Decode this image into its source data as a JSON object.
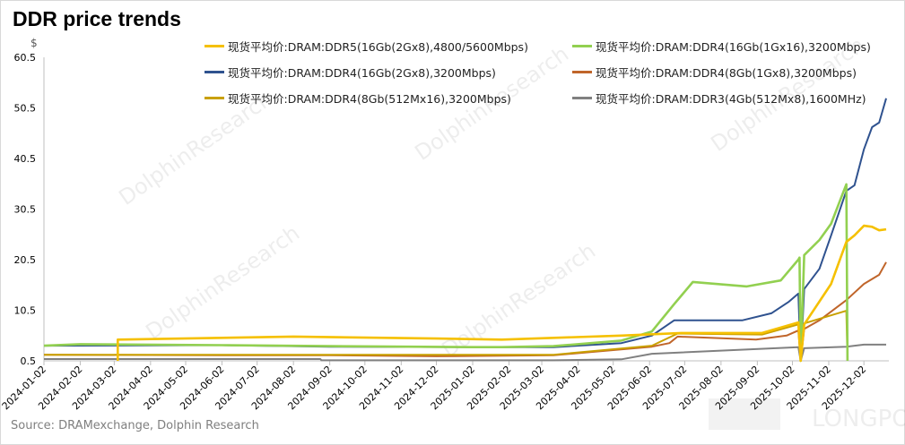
{
  "title": "DDR price trends",
  "source": "Source:  DRAMexchange,  Dolphin  Research",
  "watermarks": [
    "DolphinResearch",
    "LONGPORT"
  ],
  "chart_data": {
    "type": "line",
    "title": "DDR price trends",
    "ylabel": "$",
    "xlabel": "",
    "ylim": [
      0.5,
      60.5
    ],
    "yticks": [
      0.5,
      10.5,
      20.5,
      30.5,
      40.5,
      50.5,
      60.5
    ],
    "xlim": [
      "2024-01-02",
      "2025-12-21"
    ],
    "xticks": [
      "2024-01-02",
      "2024-02-02",
      "2024-03-02",
      "2024-04-02",
      "2024-05-02",
      "2024-06-02",
      "2024-07-02",
      "2024-08-02",
      "2024-09-02",
      "2024-10-02",
      "2024-11-02",
      "2024-12-02",
      "2025-01-02",
      "2025-02-02",
      "2025-03-02",
      "2025-04-02",
      "2025-05-02",
      "2025-06-02",
      "2025-07-02",
      "2025-08-02",
      "2025-09-02",
      "2025-10-02",
      "2025-11-02",
      "2025-12-02"
    ],
    "grid": false,
    "legend_position": "top",
    "series": [
      {
        "name": "现货平均价:DRAM:DDR5(16Gb(2Gx8),4800/5600Mbps)",
        "color": "#F5C000",
        "points": [
          [
            "2024-03-05",
            0.5
          ],
          [
            "2024-03-05",
            4.7
          ],
          [
            "2024-08-02",
            5.3
          ],
          [
            "2024-12-02",
            4.9
          ],
          [
            "2025-01-27",
            4.7
          ],
          [
            "2025-05-09",
            5.5
          ],
          [
            "2025-06-29",
            6.0
          ],
          [
            "2025-09-06",
            6.0
          ],
          [
            "2025-10-07",
            8.1
          ],
          [
            "2025-10-09",
            0.5
          ],
          [
            "2025-10-12",
            7.7
          ],
          [
            "2025-11-04",
            15.7
          ],
          [
            "2025-11-17",
            24.0
          ],
          [
            "2025-11-24",
            25.3
          ],
          [
            "2025-12-02",
            27.2
          ],
          [
            "2025-12-09",
            27.0
          ],
          [
            "2025-12-15",
            26.3
          ],
          [
            "2025-12-21",
            26.5
          ]
        ]
      },
      {
        "name": "现货平均价:DRAM:DDR4(16Gb(1Gx16),3200Mbps)",
        "color": "#92D050",
        "points": [
          [
            "2024-01-02",
            3.5
          ],
          [
            "2024-02-02",
            3.8
          ],
          [
            "2024-06-02",
            3.6
          ],
          [
            "2024-09-02",
            3.4
          ],
          [
            "2025-01-02",
            3.2
          ],
          [
            "2025-01-27",
            3.2
          ],
          [
            "2025-03-12",
            3.4
          ],
          [
            "2025-05-09",
            4.5
          ],
          [
            "2025-06-04",
            6.3
          ],
          [
            "2025-06-23",
            11.7
          ],
          [
            "2025-07-09",
            16.1
          ],
          [
            "2025-08-24",
            15.2
          ],
          [
            "2025-09-22",
            16.4
          ],
          [
            "2025-10-07",
            20.5
          ],
          [
            "2025-10-08",
            20.9
          ],
          [
            "2025-10-09",
            0.5
          ],
          [
            "2025-10-12",
            21.4
          ],
          [
            "2025-10-25",
            24.4
          ],
          [
            "2025-11-04",
            27.6
          ],
          [
            "2025-11-17",
            35.4
          ],
          [
            "2025-11-18",
            0.5
          ]
        ]
      },
      {
        "name": "现货平均价:DRAM:DDR4(16Gb(2Gx8),3200Mbps)",
        "color": "#2F528F",
        "points": [
          [
            "2024-01-02",
            3.5
          ],
          [
            "2024-06-02",
            3.6
          ],
          [
            "2024-09-02",
            3.3
          ],
          [
            "2025-01-27",
            3.2
          ],
          [
            "2025-03-12",
            3.2
          ],
          [
            "2025-05-09",
            4.0
          ],
          [
            "2025-06-04",
            5.5
          ],
          [
            "2025-06-23",
            8.5
          ],
          [
            "2025-08-20",
            8.5
          ],
          [
            "2025-09-14",
            9.9
          ],
          [
            "2025-09-29",
            12.2
          ],
          [
            "2025-10-07",
            13.8
          ],
          [
            "2025-10-09",
            0.5
          ],
          [
            "2025-10-12",
            14.7
          ],
          [
            "2025-10-25",
            18.7
          ],
          [
            "2025-11-04",
            25.3
          ],
          [
            "2025-11-17",
            34.1
          ],
          [
            "2025-11-24",
            35.2
          ],
          [
            "2025-12-02",
            42.3
          ],
          [
            "2025-12-09",
            46.7
          ],
          [
            "2025-12-15",
            47.6
          ],
          [
            "2025-12-21",
            52.4
          ]
        ]
      },
      {
        "name": "现货平均价:DRAM:DDR4(8Gb(1Gx8),3200Mbps)",
        "color": "#C0652A",
        "points": [
          [
            "2024-01-02",
            1.7
          ],
          [
            "2024-06-02",
            1.6
          ],
          [
            "2024-09-02",
            1.6
          ],
          [
            "2024-12-02",
            1.4
          ],
          [
            "2025-03-12",
            1.6
          ],
          [
            "2025-06-04",
            3.3
          ],
          [
            "2025-06-19",
            4.0
          ],
          [
            "2025-06-26",
            5.3
          ],
          [
            "2025-09-01",
            4.7
          ],
          [
            "2025-09-27",
            5.5
          ],
          [
            "2025-10-07",
            6.5
          ],
          [
            "2025-10-09",
            0.5
          ],
          [
            "2025-10-12",
            6.8
          ],
          [
            "2025-10-25",
            8.5
          ],
          [
            "2025-11-17",
            12.5
          ],
          [
            "2025-12-02",
            15.7
          ],
          [
            "2025-12-15",
            17.5
          ],
          [
            "2025-12-21",
            20.0
          ]
        ]
      },
      {
        "name": "现货平均价:DRAM:DDR4(8Gb(512Mx16),3200Mbps)",
        "color": "#C9A000",
        "points": [
          [
            "2024-01-02",
            1.7
          ],
          [
            "2024-09-02",
            1.7
          ],
          [
            "2025-03-12",
            1.7
          ],
          [
            "2025-06-04",
            3.5
          ],
          [
            "2025-06-26",
            5.9
          ],
          [
            "2025-09-06",
            5.7
          ],
          [
            "2025-10-07",
            7.7
          ],
          [
            "2025-10-09",
            0.5
          ],
          [
            "2025-10-12",
            7.9
          ],
          [
            "2025-10-25",
            8.8
          ],
          [
            "2025-11-17",
            10.4
          ],
          [
            "2025-11-18",
            0.5
          ]
        ]
      },
      {
        "name": "现货平均价:DRAM:DDR3(4Gb(512Mx8),1600MHz)",
        "color": "#808080",
        "points": [
          [
            "2024-01-02",
            0.85
          ],
          [
            "2024-08-25",
            0.85
          ],
          [
            "2024-08-26",
            0.6
          ],
          [
            "2025-03-12",
            0.6
          ],
          [
            "2025-05-09",
            0.8
          ],
          [
            "2025-06-04",
            1.9
          ],
          [
            "2025-10-07",
            3.2
          ],
          [
            "2025-10-09",
            0.5
          ],
          [
            "2025-10-12",
            3.0
          ],
          [
            "2025-11-17",
            3.3
          ],
          [
            "2025-12-02",
            3.7
          ],
          [
            "2025-12-21",
            3.7
          ]
        ]
      }
    ]
  }
}
